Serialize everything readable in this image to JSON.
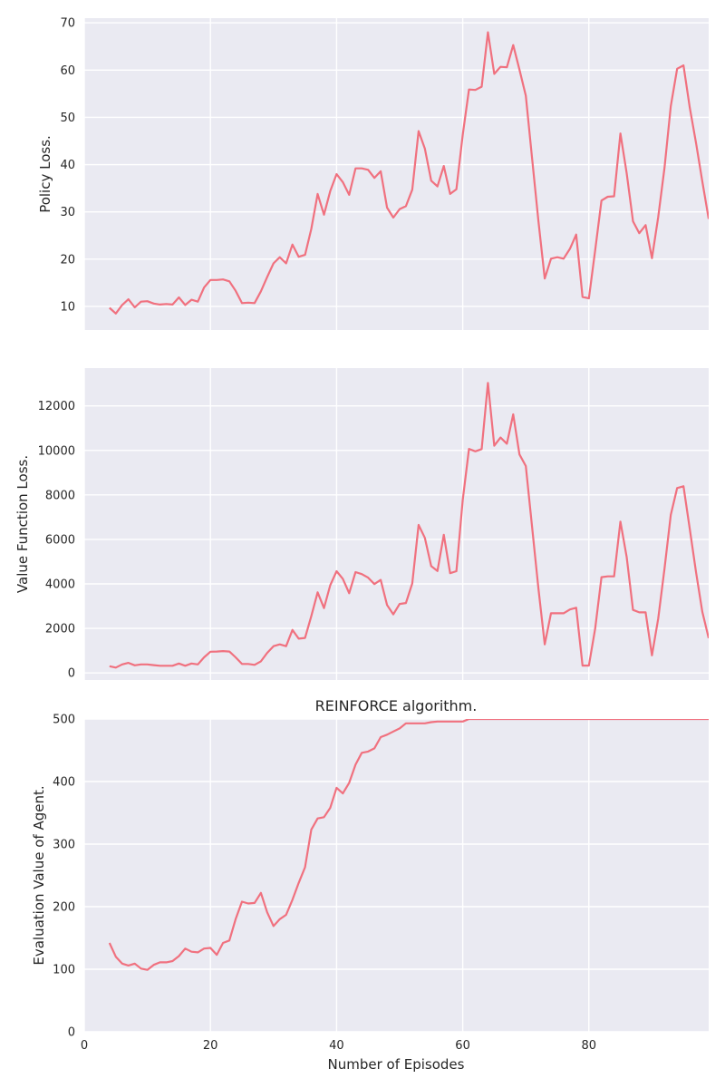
{
  "chart_data": [
    {
      "type": "line",
      "ylabel": "Policy Loss.",
      "ylim": [
        5,
        71
      ],
      "yticks": [
        10,
        20,
        30,
        40,
        50,
        60,
        70
      ],
      "xlim": [
        0,
        99
      ],
      "xticks": [
        0,
        20,
        40,
        60,
        80
      ],
      "show_xticklabels": false,
      "grid": true,
      "line_color": "#f0717f",
      "x": [
        4,
        5,
        6,
        7,
        8,
        9,
        10,
        11,
        12,
        13,
        14,
        15,
        16,
        17,
        18,
        19,
        20,
        21,
        22,
        23,
        24,
        25,
        26,
        27,
        28,
        29,
        30,
        31,
        32,
        33,
        34,
        35,
        36,
        37,
        38,
        39,
        40,
        41,
        42,
        43,
        44,
        45,
        46,
        47,
        48,
        49,
        50,
        51,
        52,
        53,
        54,
        55,
        56,
        57,
        58,
        59,
        60,
        61,
        62,
        63,
        64,
        65,
        66,
        67,
        68,
        69,
        70,
        71,
        72,
        73,
        74,
        75,
        76,
        77,
        78,
        79,
        80,
        81,
        82,
        83,
        84,
        85,
        86,
        87,
        88,
        89,
        90,
        91,
        92,
        93,
        94,
        95,
        96,
        97,
        98,
        99
      ],
      "y": [
        9.7,
        8.5,
        10.3,
        11.5,
        9.8,
        11.0,
        11.1,
        10.6,
        10.4,
        10.5,
        10.4,
        11.9,
        10.3,
        11.4,
        11.0,
        14.0,
        15.6,
        15.6,
        15.7,
        15.3,
        13.3,
        10.7,
        10.8,
        10.7,
        13.2,
        16.2,
        19.1,
        20.4,
        19.1,
        23.1,
        20.5,
        20.9,
        26.4,
        33.8,
        29.4,
        34.4,
        38.0,
        36.3,
        33.6,
        39.2,
        39.2,
        38.9,
        37.2,
        38.6,
        30.9,
        28.8,
        30.6,
        31.2,
        34.7,
        47.1,
        43.4,
        36.6,
        35.4,
        39.7,
        33.8,
        34.8,
        46.3,
        55.9,
        55.8,
        56.5,
        68.0,
        59.2,
        60.7,
        60.6,
        65.3,
        60.1,
        54.6,
        41.4,
        28.1,
        15.9,
        20.1,
        20.4,
        20.1,
        22.2,
        25.2,
        12.0,
        11.7,
        21.8,
        32.4,
        33.2,
        33.3,
        46.6,
        38.2,
        28.0,
        25.5,
        27.2,
        20.2,
        28.9,
        39.4,
        52.4,
        60.3,
        61.0,
        52.1,
        44.5,
        36.4,
        28.5
      ]
    },
    {
      "type": "line",
      "ylabel": "Value Function Loss.",
      "ylim": [
        -320,
        13700
      ],
      "yticks": [
        0,
        2000,
        4000,
        6000,
        8000,
        10000,
        12000
      ],
      "xlim": [
        0,
        99
      ],
      "xticks": [
        0,
        20,
        40,
        60,
        80
      ],
      "show_xticklabels": false,
      "grid": true,
      "line_color": "#f0717f",
      "x": [
        4,
        5,
        6,
        7,
        8,
        9,
        10,
        11,
        12,
        13,
        14,
        15,
        16,
        17,
        18,
        19,
        20,
        21,
        22,
        23,
        24,
        25,
        26,
        27,
        28,
        29,
        30,
        31,
        32,
        33,
        34,
        35,
        36,
        37,
        38,
        39,
        40,
        41,
        42,
        43,
        44,
        45,
        46,
        47,
        48,
        49,
        50,
        51,
        52,
        53,
        54,
        55,
        56,
        57,
        58,
        59,
        60,
        61,
        62,
        63,
        64,
        65,
        66,
        67,
        68,
        69,
        70,
        71,
        72,
        73,
        74,
        75,
        76,
        77,
        78,
        79,
        80,
        81,
        82,
        83,
        84,
        85,
        86,
        87,
        88,
        89,
        90,
        91,
        92,
        93,
        94,
        95,
        96,
        97,
        98,
        99
      ],
      "y": [
        300,
        240,
        380,
        450,
        340,
        380,
        380,
        350,
        320,
        320,
        320,
        420,
        320,
        420,
        380,
        700,
        950,
        960,
        980,
        960,
        700,
        400,
        400,
        360,
        520,
        900,
        1200,
        1280,
        1200,
        1930,
        1540,
        1570,
        2550,
        3620,
        2910,
        3940,
        4570,
        4230,
        3580,
        4530,
        4440,
        4280,
        3990,
        4180,
        3050,
        2630,
        3100,
        3140,
        4020,
        6650,
        6070,
        4800,
        4580,
        6210,
        4480,
        4570,
        7770,
        10070,
        9960,
        10060,
        13030,
        10210,
        10580,
        10300,
        11620,
        9820,
        9300,
        6570,
        3800,
        1280,
        2680,
        2680,
        2680,
        2850,
        2930,
        330,
        330,
        1980,
        4300,
        4340,
        4340,
        6800,
        5210,
        2830,
        2720,
        2720,
        790,
        2440,
        4700,
        7110,
        8310,
        8390,
        6480,
        4510,
        2740,
        1560
      ]
    },
    {
      "type": "line",
      "title": "REINFORCE algorithm.",
      "xlabel": "Number of Episodes",
      "ylabel": "Evaluation Value of Agent.",
      "ylim": [
        0,
        500
      ],
      "yticks": [
        0,
        100,
        200,
        300,
        400,
        500
      ],
      "xlim": [
        0,
        99
      ],
      "xticks": [
        0,
        20,
        40,
        60,
        80
      ],
      "show_xticklabels": true,
      "grid": true,
      "line_color": "#f0717f",
      "x": [
        4,
        5,
        6,
        7,
        8,
        9,
        10,
        11,
        12,
        13,
        14,
        15,
        16,
        17,
        18,
        19,
        20,
        21,
        22,
        23,
        24,
        25,
        26,
        27,
        28,
        29,
        30,
        31,
        32,
        33,
        34,
        35,
        36,
        37,
        38,
        39,
        40,
        41,
        42,
        43,
        44,
        45,
        46,
        47,
        48,
        49,
        50,
        51,
        52,
        53,
        54,
        55,
        56,
        57,
        58,
        59,
        60,
        61,
        62,
        63,
        64,
        65,
        66,
        67,
        68,
        69,
        70,
        71,
        72,
        73,
        74,
        75,
        76,
        77,
        78,
        79,
        80,
        81,
        82,
        83,
        84,
        85,
        86,
        87,
        88,
        89,
        90,
        91,
        92,
        93,
        94,
        95,
        96,
        97,
        98,
        99
      ],
      "y": [
        142,
        120,
        109,
        106,
        109,
        101,
        99,
        107,
        111,
        111,
        113,
        121,
        133,
        128,
        127,
        133,
        134,
        123,
        142,
        146,
        180,
        208,
        205,
        206,
        222,
        191,
        169,
        180,
        187,
        211,
        238,
        263,
        323,
        341,
        343,
        358,
        390,
        381,
        398,
        427,
        446,
        448,
        453,
        471,
        475,
        480,
        485,
        493,
        493,
        493,
        493,
        495,
        496,
        496,
        496,
        496,
        496,
        500,
        500,
        500,
        500,
        500,
        500,
        500,
        500,
        500,
        500,
        500,
        500,
        500,
        500,
        500,
        500,
        500,
        500,
        500,
        500,
        500,
        500,
        500,
        500,
        500,
        500,
        500,
        500,
        500,
        500,
        500,
        500,
        500,
        500,
        500,
        500,
        500,
        500,
        500
      ]
    }
  ]
}
